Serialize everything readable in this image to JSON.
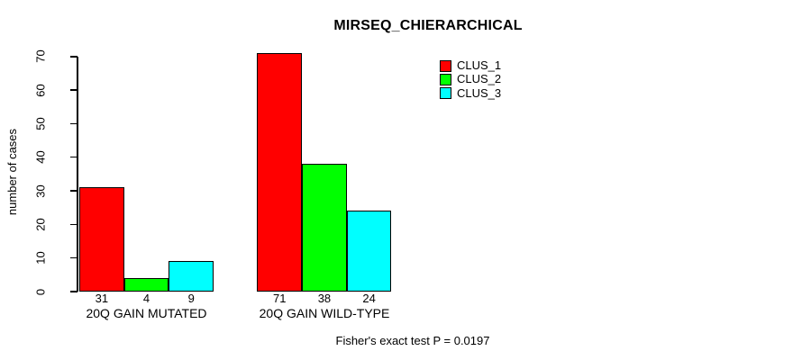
{
  "chart_data": {
    "type": "bar",
    "title": "MIRSEQ_CHIERARCHICAL",
    "ylabel": "number of cases",
    "xlabel": "",
    "categories": [
      "20Q GAIN MUTATED",
      "20Q GAIN WILD-TYPE"
    ],
    "series": [
      {
        "name": "CLUS_1",
        "color": "#FF0000",
        "values": [
          31,
          71
        ]
      },
      {
        "name": "CLUS_2",
        "color": "#00FF00",
        "values": [
          4,
          38
        ]
      },
      {
        "name": "CLUS_3",
        "color": "#00FFFF",
        "values": [
          9,
          24
        ]
      }
    ],
    "bar_value_labels": [
      [
        "31",
        "4",
        "9"
      ],
      [
        "71",
        "38",
        "24"
      ]
    ],
    "yticks": [
      0,
      10,
      20,
      30,
      40,
      50,
      60,
      70
    ],
    "ylim": [
      0,
      71
    ],
    "grid": false,
    "legend_position": "top-center-right",
    "legend_entries": [
      "CLUS_1",
      "CLUS_2",
      "CLUS_3"
    ],
    "annotation": "Fisher's exact test P = 0.0197",
    "background": "#FFFFFF",
    "axis_color": "#000000"
  }
}
